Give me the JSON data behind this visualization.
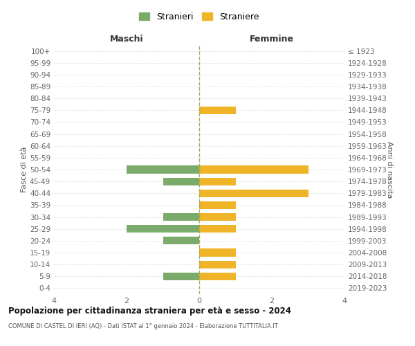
{
  "age_groups": [
    "100+",
    "95-99",
    "90-94",
    "85-89",
    "80-84",
    "75-79",
    "70-74",
    "65-69",
    "60-64",
    "55-59",
    "50-54",
    "45-49",
    "40-44",
    "35-39",
    "30-34",
    "25-29",
    "20-24",
    "15-19",
    "10-14",
    "5-9",
    "0-4"
  ],
  "birth_years": [
    "≤ 1923",
    "1924-1928",
    "1929-1933",
    "1934-1938",
    "1939-1943",
    "1944-1948",
    "1949-1953",
    "1954-1958",
    "1959-1963",
    "1964-1968",
    "1969-1973",
    "1974-1978",
    "1979-1983",
    "1984-1988",
    "1989-1993",
    "1994-1998",
    "1999-2003",
    "2004-2008",
    "2009-2013",
    "2014-2018",
    "2019-2023"
  ],
  "maschi_stranieri": [
    0,
    0,
    0,
    0,
    0,
    0,
    0,
    0,
    0,
    0,
    2,
    1,
    0,
    0,
    1,
    2,
    1,
    0,
    0,
    1,
    0
  ],
  "femmine_straniere": [
    0,
    0,
    0,
    0,
    0,
    1,
    0,
    0,
    0,
    0,
    3,
    1,
    3,
    1,
    1,
    1,
    0,
    1,
    1,
    1,
    0
  ],
  "color_maschi": "#7aab6b",
  "color_femmine": "#f0b429",
  "title": "Popolazione per cittadinanza straniera per età e sesso - 2024",
  "subtitle": "COMUNE DI CASTEL DI IERI (AQ) - Dati ISTAT al 1° gennaio 2024 - Elaborazione TUTTITALIA.IT",
  "xlabel_left": "Maschi",
  "xlabel_right": "Femmine",
  "ylabel_left": "Fasce di età",
  "ylabel_right": "Anni di nascita",
  "legend_maschi": "Stranieri",
  "legend_femmine": "Straniere",
  "xlim": 4,
  "background_color": "#ffffff",
  "grid_color": "#dddddd"
}
